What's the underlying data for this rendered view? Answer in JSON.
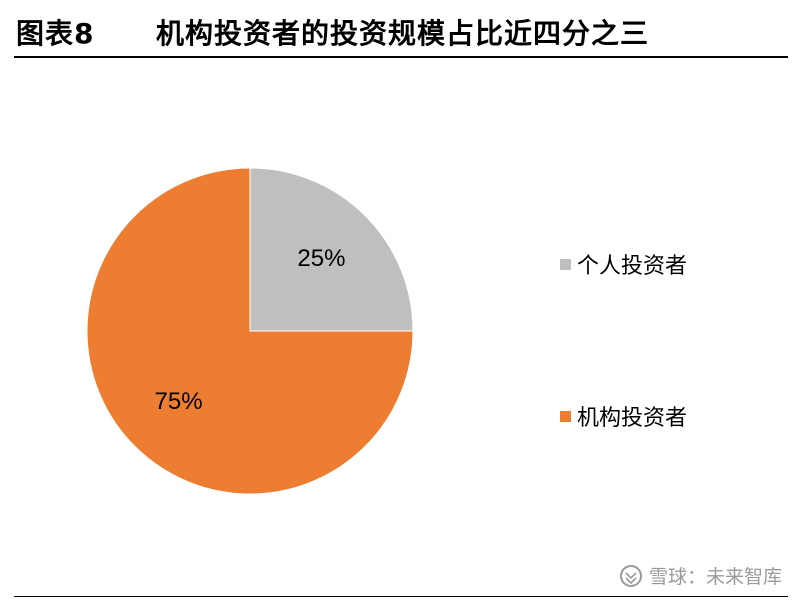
{
  "header": {
    "figure_number": "图表8",
    "title": "机构投资者的投资规模占比近四分之三"
  },
  "chart_data": {
    "type": "pie",
    "title": "",
    "slices": [
      {
        "name": "个人投资者",
        "value": 25,
        "label": "25%",
        "color": "#bfbfbf"
      },
      {
        "name": "机构投资者",
        "value": 75,
        "label": "75%",
        "color": "#ed7d31"
      }
    ],
    "legend_position": "right"
  },
  "watermark": {
    "text": "雪球：未来智库",
    "icon": "snowball-logo-icon"
  }
}
